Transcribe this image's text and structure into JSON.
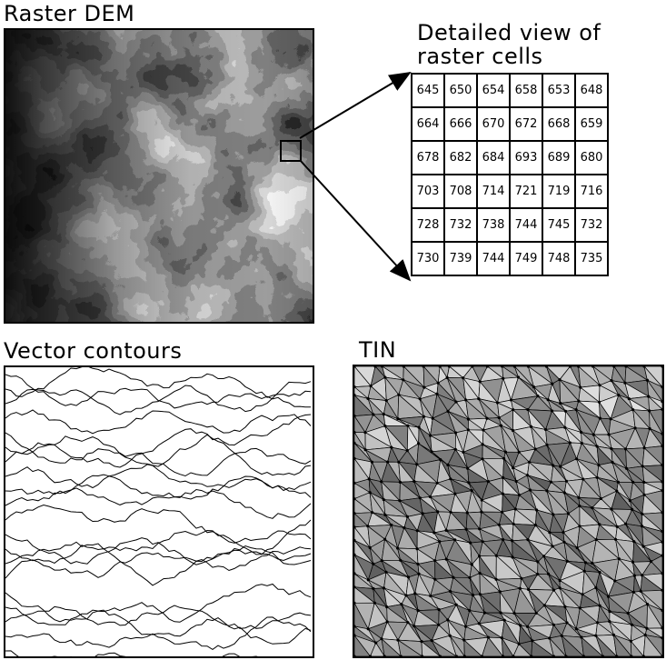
{
  "raster": {
    "title": "Raster DEM"
  },
  "detail": {
    "title_line1": "Detailed view of",
    "title_line2": "raster cells",
    "cells": [
      [
        645,
        650,
        654,
        658,
        653,
        648
      ],
      [
        664,
        666,
        670,
        672,
        668,
        659
      ],
      [
        678,
        682,
        684,
        693,
        689,
        680
      ],
      [
        703,
        708,
        714,
        721,
        719,
        716
      ],
      [
        728,
        732,
        738,
        744,
        745,
        732
      ],
      [
        730,
        739,
        744,
        749,
        748,
        735
      ]
    ]
  },
  "vector": {
    "title": "Vector contours"
  },
  "tin": {
    "title": "TIN"
  },
  "colors": {
    "line": "#000000",
    "background": "#ffffff"
  }
}
